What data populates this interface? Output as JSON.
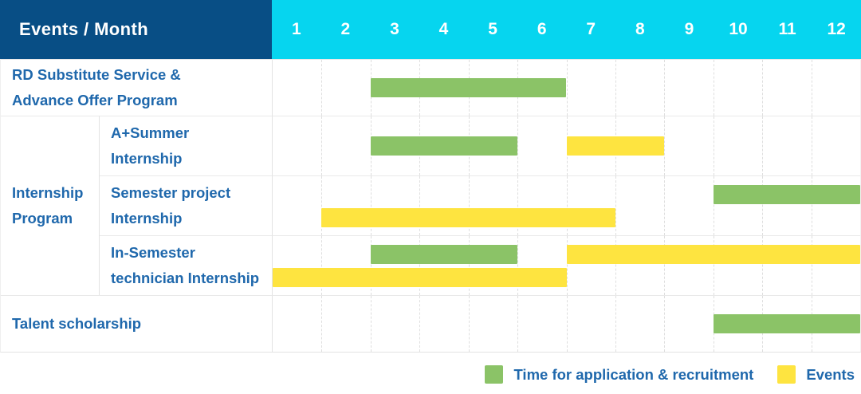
{
  "header": {
    "title": "Events / Month",
    "months": [
      "1",
      "2",
      "3",
      "4",
      "5",
      "6",
      "7",
      "8",
      "9",
      "10",
      "11",
      "12"
    ]
  },
  "groups": {
    "internship": {
      "label_lines": [
        "Internship",
        "Program"
      ]
    }
  },
  "rows": [
    {
      "id": "rd-substitute-service",
      "group": null,
      "label_lines": [
        "RD Substitute Service &",
        "Advance Offer Program"
      ],
      "bars": [
        {
          "type": "application",
          "start_month": 3,
          "end_month": 6,
          "line": "single"
        }
      ]
    },
    {
      "id": "a-plus-summer-internship",
      "group": "internship",
      "label_lines": [
        "A+Summer",
        "Internship"
      ],
      "bars": [
        {
          "type": "application",
          "start_month": 3,
          "end_month": 5,
          "line": "single"
        },
        {
          "type": "event",
          "start_month": 7,
          "end_month": 8,
          "line": "single"
        }
      ]
    },
    {
      "id": "semester-project-internship",
      "group": "internship",
      "label_lines": [
        "Semester project",
        "Internship"
      ],
      "bars": [
        {
          "type": "application",
          "start_month": 10,
          "end_month": 12,
          "line": "upper"
        },
        {
          "type": "event",
          "start_month": 2,
          "end_month": 7,
          "line": "lower"
        }
      ]
    },
    {
      "id": "in-semester-technician-internship",
      "group": "internship",
      "label_lines": [
        "In-Semester",
        "technician Internship"
      ],
      "bars": [
        {
          "type": "application",
          "start_month": 3,
          "end_month": 5,
          "line": "upper"
        },
        {
          "type": "event",
          "start_month": 7,
          "end_month": 12,
          "line": "upper"
        },
        {
          "type": "event",
          "start_month": 1,
          "end_month": 6,
          "line": "lower"
        }
      ]
    },
    {
      "id": "talent-scholarship",
      "group": null,
      "label_lines": [
        "Talent scholarship"
      ],
      "bars": [
        {
          "type": "application",
          "start_month": 10,
          "end_month": 12,
          "line": "single"
        }
      ]
    }
  ],
  "legend": [
    {
      "type": "application",
      "label": "Time for application & recruitment",
      "color": "#8bc367"
    },
    {
      "type": "event",
      "label": "Events",
      "color": "#fee440"
    }
  ],
  "colors": {
    "navy": "#084e85",
    "cyan": "#06d5ef",
    "labelblue": "#1f68ac",
    "green": "#8bc367",
    "yellow": "#fee440"
  },
  "chart_data": {
    "type": "bar",
    "subtype": "gantt",
    "title": "Events / Month",
    "x_unit": "month",
    "x_range": [
      1,
      12
    ],
    "x_ticks": [
      "1",
      "2",
      "3",
      "4",
      "5",
      "6",
      "7",
      "8",
      "9",
      "10",
      "11",
      "12"
    ],
    "categories": [
      "RD Substitute Service & Advance Offer Program",
      "Internship Program — A+Summer Internship",
      "Internship Program — Semester project Internship",
      "Internship Program — In-Semester technician Internship",
      "Talent scholarship"
    ],
    "series": [
      {
        "name": "Time for application & recruitment",
        "color": "#8bc367",
        "spans": [
          {
            "category": "RD Substitute Service & Advance Offer Program",
            "start_month": 3,
            "end_month": 6
          },
          {
            "category": "Internship Program — A+Summer Internship",
            "start_month": 3,
            "end_month": 5
          },
          {
            "category": "Internship Program — Semester project Internship",
            "start_month": 10,
            "end_month": 12
          },
          {
            "category": "Internship Program — In-Semester technician Internship",
            "start_month": 3,
            "end_month": 5
          },
          {
            "category": "Talent scholarship",
            "start_month": 10,
            "end_month": 12
          }
        ]
      },
      {
        "name": "Events",
        "color": "#fee440",
        "spans": [
          {
            "category": "Internship Program — A+Summer Internship",
            "start_month": 7,
            "end_month": 8
          },
          {
            "category": "Internship Program — Semester project Internship",
            "start_month": 2,
            "end_month": 7
          },
          {
            "category": "Internship Program — In-Semester technician Internship",
            "start_month": 7,
            "end_month": 12
          },
          {
            "category": "Internship Program — In-Semester technician Internship",
            "start_month": 1,
            "end_month": 6
          }
        ]
      }
    ],
    "grid": "dashed-vertical-month-lines",
    "legend_position": "bottom-right"
  }
}
